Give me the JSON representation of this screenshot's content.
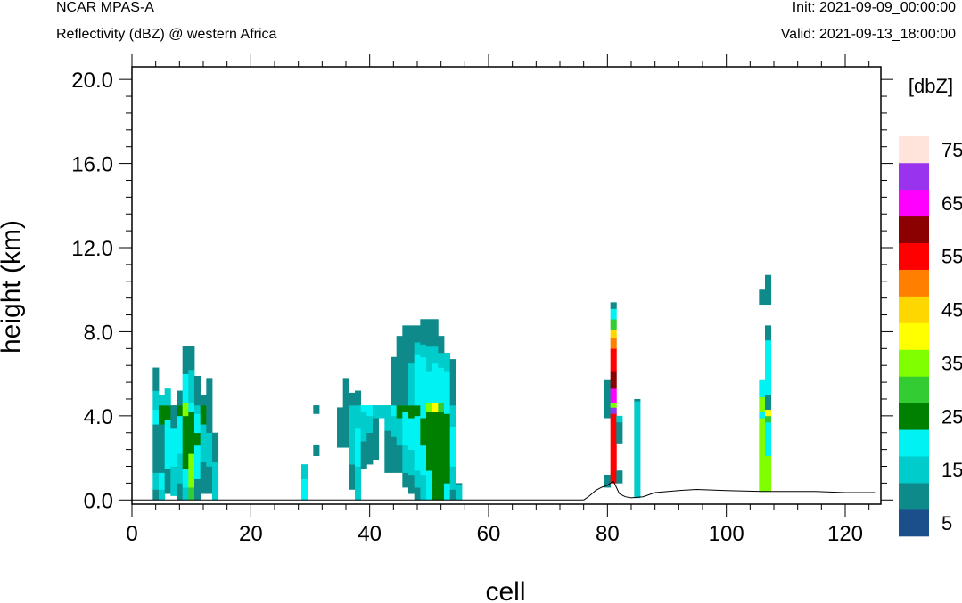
{
  "header": {
    "model": "NCAR MPAS-A",
    "field": "Reflectivity (dBZ) @ western Africa",
    "init": "Init: 2021-09-09_00:00:00",
    "valid": "Valid: 2021-09-13_18:00:00"
  },
  "chart_data": {
    "type": "heatmap",
    "xlabel": "cell",
    "ylabel": "height (km)",
    "xlim": [
      0,
      126
    ],
    "ylim": [
      -0.2,
      20.6
    ],
    "x_ticks": [
      "0",
      "20",
      "40",
      "60",
      "80",
      "100",
      "120"
    ],
    "y_ticks": [
      "0.0",
      "4.0",
      "8.0",
      "12.0",
      "16.0",
      "20.0"
    ],
    "colorbar": {
      "units": "[dbZ]",
      "bounds": [
        0,
        5,
        10,
        15,
        20,
        25,
        30,
        35,
        40,
        45,
        50,
        55,
        60,
        65,
        70,
        75
      ],
      "labels": [
        "5",
        "15",
        "25",
        "35",
        "45",
        "55",
        "65",
        "75"
      ],
      "colors": [
        "#1a4f8b",
        "#0e8a8a",
        "#00cccc",
        "#00f2f2",
        "#008000",
        "#33cc33",
        "#80ff00",
        "#ffff00",
        "#ffd700",
        "#ff8000",
        "#ff0000",
        "#8b0000",
        "#ff00ff",
        "#9933ee",
        "#ffe4dc"
      ]
    },
    "terrain": [
      [
        76,
        0
      ],
      [
        77,
        0.2
      ],
      [
        78,
        0.45
      ],
      [
        79,
        0.6
      ],
      [
        80,
        0.7
      ],
      [
        81,
        0.9
      ],
      [
        82,
        0.3
      ],
      [
        83,
        0.15
      ],
      [
        84,
        0.1
      ],
      [
        86,
        0.15
      ],
      [
        88,
        0.35
      ],
      [
        92,
        0.45
      ],
      [
        95,
        0.5
      ],
      [
        100,
        0.45
      ],
      [
        106,
        0.4
      ],
      [
        115,
        0.4
      ],
      [
        120,
        0.35
      ],
      [
        125,
        0.35
      ]
    ],
    "columns": [
      {
        "cell": 4,
        "segments": [
          [
            0,
            0.5,
            5
          ],
          [
            0.5,
            1.3,
            10
          ],
          [
            1.3,
            3.6,
            5
          ],
          [
            3.6,
            4.3,
            15
          ],
          [
            4.3,
            5.2,
            10
          ],
          [
            5.2,
            6.3,
            5
          ]
        ]
      },
      {
        "cell": 5,
        "segments": [
          [
            0,
            0.5,
            10
          ],
          [
            0.5,
            1.3,
            15
          ],
          [
            1.3,
            3.6,
            5
          ],
          [
            3.6,
            4.5,
            20
          ],
          [
            4.5,
            5.0,
            10
          ]
        ]
      },
      {
        "cell": 6,
        "segments": [
          [
            0.3,
            1.5,
            5
          ],
          [
            1.5,
            3.8,
            15
          ],
          [
            3.8,
            4.5,
            20
          ],
          [
            4.5,
            5.3,
            10
          ]
        ]
      },
      {
        "cell": 7,
        "segments": [
          [
            0.2,
            1.6,
            10
          ],
          [
            1.6,
            3.4,
            15
          ],
          [
            3.4,
            4.5,
            5
          ]
        ]
      },
      {
        "cell": 8,
        "segments": [
          [
            0,
            0.8,
            5
          ],
          [
            0.8,
            2.2,
            10
          ],
          [
            2.2,
            4.0,
            15
          ],
          [
            4.0,
            4.5,
            20
          ],
          [
            4.5,
            5.2,
            5
          ]
        ]
      },
      {
        "cell": 9,
        "segments": [
          [
            0,
            0.6,
            10
          ],
          [
            0.6,
            1.5,
            15
          ],
          [
            1.5,
            4.0,
            20
          ],
          [
            4.0,
            4.6,
            30
          ],
          [
            4.6,
            6.0,
            15
          ],
          [
            6.0,
            7.3,
            5
          ]
        ]
      },
      {
        "cell": 10,
        "segments": [
          [
            0,
            0.6,
            25
          ],
          [
            0.6,
            2.2,
            30
          ],
          [
            2.2,
            4.2,
            20
          ],
          [
            4.2,
            4.6,
            15
          ],
          [
            4.6,
            6.2,
            10
          ],
          [
            6.2,
            7.3,
            5
          ]
        ]
      },
      {
        "cell": 11,
        "segments": [
          [
            0,
            1.0,
            5
          ],
          [
            1.0,
            2.6,
            15
          ],
          [
            2.6,
            3.2,
            20
          ],
          [
            3.2,
            4.1,
            15
          ],
          [
            4.1,
            4.5,
            10
          ],
          [
            4.5,
            5.9,
            5
          ]
        ]
      },
      {
        "cell": 12,
        "segments": [
          [
            0.3,
            1.8,
            5
          ],
          [
            1.8,
            3.6,
            10
          ],
          [
            3.6,
            4.5,
            20
          ],
          [
            4.5,
            5.0,
            5
          ]
        ]
      },
      {
        "cell": 13,
        "segments": [
          [
            0.3,
            1.6,
            5
          ],
          [
            1.6,
            3.2,
            10
          ],
          [
            3.2,
            4.5,
            5
          ],
          [
            4.5,
            5.8,
            5
          ]
        ]
      },
      {
        "cell": 14,
        "segments": [
          [
            0,
            1.8,
            10
          ],
          [
            1.8,
            3.2,
            5
          ]
        ]
      },
      {
        "cell": 29,
        "segments": [
          [
            0,
            1.0,
            15
          ],
          [
            1.0,
            1.7,
            10
          ]
        ]
      },
      {
        "cell": 31,
        "segments": [
          [
            2.1,
            2.6,
            5
          ],
          [
            4.1,
            4.5,
            5
          ]
        ]
      },
      {
        "cell": 35,
        "segments": [
          [
            2.5,
            4.4,
            5
          ]
        ]
      },
      {
        "cell": 36,
        "segments": [
          [
            2.5,
            4.5,
            5
          ],
          [
            4.5,
            5.8,
            5
          ]
        ]
      },
      {
        "cell": 37,
        "segments": [
          [
            0.5,
            1.7,
            5
          ],
          [
            1.7,
            4.5,
            10
          ],
          [
            4.5,
            5.1,
            5
          ]
        ]
      },
      {
        "cell": 38,
        "segments": [
          [
            0,
            1.6,
            10
          ],
          [
            1.6,
            3.4,
            15
          ],
          [
            3.4,
            4.5,
            10
          ],
          [
            4.5,
            5.2,
            5
          ]
        ]
      },
      {
        "cell": 39,
        "segments": [
          [
            1.5,
            2.8,
            5
          ],
          [
            2.8,
            4.2,
            10
          ],
          [
            4.2,
            4.5,
            15
          ]
        ]
      },
      {
        "cell": 40,
        "segments": [
          [
            1.7,
            3.2,
            5
          ],
          [
            3.2,
            4.0,
            10
          ],
          [
            4.0,
            4.5,
            15
          ]
        ]
      },
      {
        "cell": 41,
        "segments": [
          [
            1.9,
            3.9,
            5
          ],
          [
            3.9,
            4.5,
            10
          ]
        ]
      },
      {
        "cell": 42,
        "segments": [
          [
            3.9,
            4.5,
            10
          ]
        ]
      },
      {
        "cell": 43,
        "segments": [
          [
            1.3,
            3.3,
            5
          ],
          [
            3.3,
            4.5,
            10
          ]
        ]
      },
      {
        "cell": 44,
        "segments": [
          [
            1.3,
            3.0,
            5
          ],
          [
            3.0,
            4.0,
            10
          ],
          [
            4.0,
            4.5,
            15
          ],
          [
            4.5,
            6.8,
            5
          ]
        ]
      },
      {
        "cell": 45,
        "segments": [
          [
            1.3,
            2.6,
            5
          ],
          [
            2.6,
            3.9,
            10
          ],
          [
            3.9,
            4.5,
            20
          ],
          [
            4.5,
            7.8,
            5
          ]
        ]
      },
      {
        "cell": 46,
        "segments": [
          [
            0.6,
            1.3,
            5
          ],
          [
            1.3,
            2.6,
            10
          ],
          [
            2.6,
            4.2,
            15
          ],
          [
            4.2,
            4.5,
            20
          ],
          [
            4.5,
            8.3,
            5
          ]
        ]
      },
      {
        "cell": 47,
        "segments": [
          [
            0.3,
            1.2,
            5
          ],
          [
            1.2,
            2.4,
            10
          ],
          [
            2.4,
            3.9,
            15
          ],
          [
            3.9,
            4.5,
            20
          ],
          [
            4.5,
            6.5,
            10
          ],
          [
            6.5,
            8.3,
            5
          ]
        ]
      },
      {
        "cell": 48,
        "segments": [
          [
            0,
            0.6,
            5
          ],
          [
            0.6,
            1.4,
            10
          ],
          [
            1.4,
            4.0,
            15
          ],
          [
            4.0,
            4.5,
            20
          ],
          [
            4.5,
            6.9,
            15
          ],
          [
            6.9,
            7.5,
            10
          ],
          [
            7.5,
            8.3,
            5
          ]
        ]
      },
      {
        "cell": 49,
        "segments": [
          [
            0,
            1.2,
            10
          ],
          [
            1.2,
            2.6,
            15
          ],
          [
            2.6,
            3.9,
            20
          ],
          [
            3.9,
            4.5,
            15
          ],
          [
            4.5,
            6.8,
            15
          ],
          [
            6.8,
            7.4,
            10
          ],
          [
            7.4,
            8.6,
            5
          ]
        ]
      },
      {
        "cell": 50,
        "segments": [
          [
            0,
            1.4,
            15
          ],
          [
            1.4,
            4.2,
            20
          ],
          [
            4.2,
            4.6,
            30
          ],
          [
            4.6,
            6.1,
            15
          ],
          [
            6.1,
            7.3,
            10
          ],
          [
            7.3,
            8.6,
            5
          ]
        ]
      },
      {
        "cell": 51,
        "segments": [
          [
            0,
            4.2,
            20
          ],
          [
            4.2,
            4.6,
            35
          ],
          [
            4.6,
            6.5,
            15
          ],
          [
            6.5,
            7.3,
            10
          ],
          [
            7.3,
            8.6,
            5
          ]
        ]
      },
      {
        "cell": 52,
        "segments": [
          [
            0,
            4.2,
            20
          ],
          [
            4.2,
            4.6,
            25
          ],
          [
            4.6,
            6.3,
            15
          ],
          [
            6.3,
            7.0,
            10
          ],
          [
            7.0,
            7.8,
            5
          ]
        ]
      },
      {
        "cell": 53,
        "segments": [
          [
            0,
            0.8,
            15
          ],
          [
            0.8,
            4.1,
            20
          ],
          [
            4.1,
            4.5,
            15
          ],
          [
            4.5,
            6.1,
            15
          ],
          [
            6.1,
            7.0,
            10
          ]
        ]
      },
      {
        "cell": 54,
        "segments": [
          [
            0,
            0.5,
            5
          ],
          [
            0.5,
            1.6,
            10
          ],
          [
            1.6,
            3.5,
            15
          ],
          [
            3.5,
            4.5,
            10
          ],
          [
            4.5,
            6.7,
            5
          ]
        ]
      },
      {
        "cell": 55,
        "segments": [
          [
            0,
            0.7,
            10
          ],
          [
            0.7,
            0.8,
            5
          ]
        ]
      },
      {
        "cell": 80,
        "segments": [
          [
            0.6,
            1.2,
            5
          ],
          [
            3.9,
            5.7,
            5
          ]
        ]
      },
      {
        "cell": 81,
        "segments": [
          [
            0.8,
            4.1,
            50
          ],
          [
            4.1,
            4.4,
            65
          ],
          [
            4.4,
            4.6,
            30
          ],
          [
            4.6,
            5.3,
            60
          ],
          [
            5.3,
            6.1,
            55
          ],
          [
            6.1,
            7.2,
            50
          ],
          [
            7.2,
            7.7,
            45
          ],
          [
            7.7,
            8.1,
            40
          ],
          [
            8.1,
            8.6,
            25
          ],
          [
            8.6,
            9.1,
            15
          ],
          [
            9.1,
            9.4,
            5
          ]
        ]
      },
      {
        "cell": 82,
        "segments": [
          [
            0.8,
            1.4,
            5
          ],
          [
            2.7,
            3.7,
            5
          ],
          [
            3.7,
            4.0,
            10
          ]
        ]
      },
      {
        "cell": 85,
        "segments": [
          [
            0.1,
            4.7,
            10
          ],
          [
            4.7,
            4.8,
            5
          ]
        ]
      },
      {
        "cell": 106,
        "segments": [
          [
            0.4,
            3.9,
            30
          ],
          [
            3.9,
            4.2,
            15
          ],
          [
            4.2,
            4.9,
            30
          ],
          [
            4.9,
            5.7,
            15
          ],
          [
            9.3,
            10.0,
            5
          ]
        ]
      },
      {
        "cell": 107,
        "segments": [
          [
            0.4,
            2.1,
            30
          ],
          [
            2.1,
            3.7,
            15
          ],
          [
            3.7,
            4.0,
            25
          ],
          [
            4.0,
            4.3,
            35
          ],
          [
            4.3,
            5.0,
            5
          ],
          [
            5.0,
            7.6,
            15
          ],
          [
            7.6,
            8.3,
            5
          ],
          [
            9.3,
            10.7,
            5
          ]
        ]
      }
    ]
  }
}
